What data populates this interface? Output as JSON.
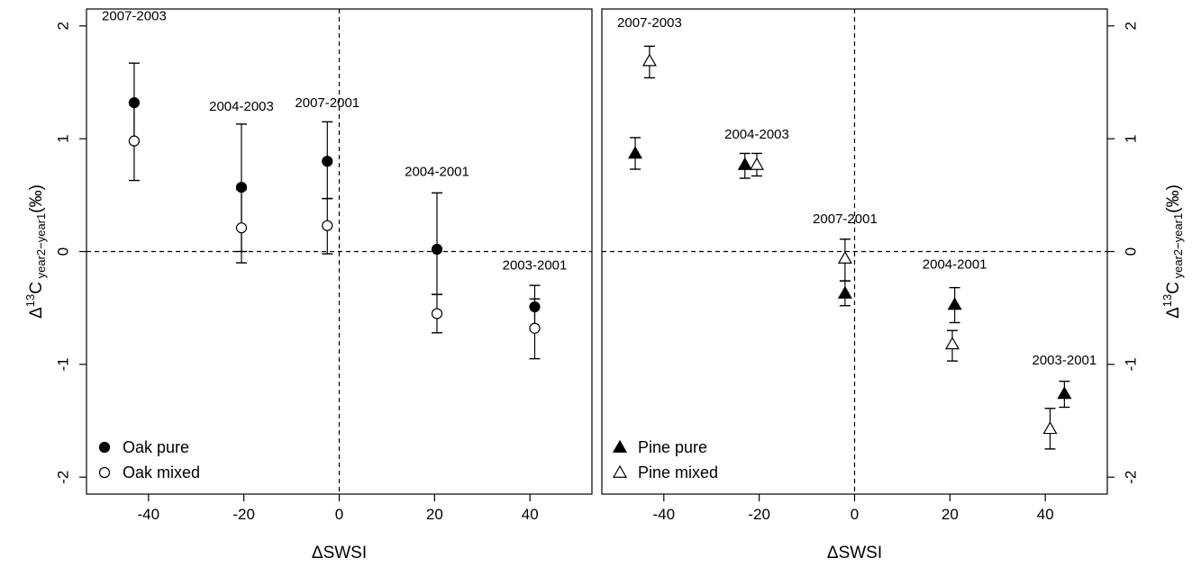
{
  "chart_data": [
    {
      "type": "scatter",
      "panel": "left",
      "xlabel": "ΔSWSI",
      "ylabel": "Δ¹³C year2−year1(‰)",
      "ylabel_parts": {
        "delta": "Δ",
        "sup": "13",
        "main": "C",
        "sub": "year2−year1",
        "unit": "(‰)"
      },
      "xlim": [
        -53,
        53
      ],
      "ylim": [
        -2.15,
        2.15
      ],
      "xticks": [
        -40,
        -20,
        0,
        20,
        40
      ],
      "yticks": [
        -2,
        -1,
        0,
        1,
        2
      ],
      "xtick_labels": [
        "-40",
        "-20",
        "0",
        "20",
        "40"
      ],
      "ytick_labels": [
        "-2",
        "-1",
        "0",
        "1",
        "2"
      ],
      "yaxis_side": "left",
      "reference_lines": {
        "x": 0,
        "y": 0
      },
      "legend_position": "bottom-left",
      "series": [
        {
          "name": "Oak pure",
          "marker": "filled-circle",
          "points": [
            {
              "x": -43,
              "y": 1.32,
              "low": 0.97,
              "high": 1.67
            },
            {
              "x": -20.5,
              "y": 0.57,
              "low": 0.0,
              "high": 1.13
            },
            {
              "x": -2.5,
              "y": 0.8,
              "low": 0.47,
              "high": 1.15
            },
            {
              "x": 20.5,
              "y": 0.02,
              "low": -0.38,
              "high": 0.52
            },
            {
              "x": 41,
              "y": -0.49,
              "low": -0.68,
              "high": -0.3
            }
          ]
        },
        {
          "name": "Oak mixed",
          "marker": "open-circle",
          "points": [
            {
              "x": -43,
              "y": 0.98,
              "low": 0.63,
              "high": 1.32
            },
            {
              "x": -20.5,
              "y": 0.21,
              "low": -0.1,
              "high": 0.55
            },
            {
              "x": -2.5,
              "y": 0.23,
              "low": -0.02,
              "high": 0.47
            },
            {
              "x": 20.5,
              "y": -0.55,
              "low": -0.72,
              "high": -0.38
            },
            {
              "x": 41,
              "y": -0.68,
              "low": -0.95,
              "high": -0.42
            }
          ]
        }
      ],
      "annotations": [
        {
          "text": "2007-2003",
          "x": -43,
          "y": 2.05
        },
        {
          "text": "2004-2003",
          "x": -20.5,
          "y": 1.25
        },
        {
          "text": "2007-2001",
          "x": -2.5,
          "y": 1.28
        },
        {
          "text": "2004-2001",
          "x": 20.5,
          "y": 0.67
        },
        {
          "text": "2003-2001",
          "x": 41,
          "y": -0.16
        }
      ]
    },
    {
      "type": "scatter",
      "panel": "right",
      "xlabel": "ΔSWSI",
      "ylabel": "Δ¹³C year2−year1(‰)",
      "ylabel_parts": {
        "delta": "Δ",
        "sup": "13",
        "main": "C",
        "sub": "year2−year1",
        "unit": "(‰)"
      },
      "xlim": [
        -53,
        53
      ],
      "ylim": [
        -2.15,
        2.15
      ],
      "xticks": [
        -40,
        -20,
        0,
        20,
        40
      ],
      "yticks": [
        -2,
        -1,
        0,
        1,
        2
      ],
      "xtick_labels": [
        "-40",
        "-20",
        "0",
        "20",
        "40"
      ],
      "ytick_labels": [
        "-2",
        "-1",
        "0",
        "1",
        "2"
      ],
      "yaxis_side": "right",
      "reference_lines": {
        "x": 0,
        "y": 0
      },
      "legend_position": "bottom-left",
      "series": [
        {
          "name": "Pine pure",
          "marker": "filled-triangle",
          "points": [
            {
              "x": -46,
              "y": 0.87,
              "low": 0.73,
              "high": 1.01
            },
            {
              "x": -23,
              "y": 0.77,
              "low": 0.65,
              "high": 0.87
            },
            {
              "x": -2,
              "y": -0.37,
              "low": -0.48,
              "high": -0.26
            },
            {
              "x": 21,
              "y": -0.47,
              "low": -0.63,
              "high": -0.32
            },
            {
              "x": 44,
              "y": -1.26,
              "low": -1.38,
              "high": -1.15
            }
          ]
        },
        {
          "name": "Pine mixed",
          "marker": "open-triangle",
          "points": [
            {
              "x": -43,
              "y": 1.69,
              "low": 1.54,
              "high": 1.82
            },
            {
              "x": -20.5,
              "y": 0.77,
              "low": 0.67,
              "high": 0.87
            },
            {
              "x": -2,
              "y": -0.06,
              "low": -0.26,
              "high": 0.11
            },
            {
              "x": 20.5,
              "y": -0.82,
              "low": -0.97,
              "high": -0.7
            },
            {
              "x": 41,
              "y": -1.57,
              "low": -1.75,
              "high": -1.39
            }
          ]
        }
      ],
      "annotations": [
        {
          "text": "2007-2003",
          "x": -43,
          "y": 1.99
        },
        {
          "text": "2004-2003",
          "x": -20.5,
          "y": 1.0
        },
        {
          "text": "2007-2001",
          "x": -2,
          "y": 0.25
        },
        {
          "text": "2004-2001",
          "x": 21,
          "y": -0.15
        },
        {
          "text": "2003-2001",
          "x": 44,
          "y": -1.0
        }
      ]
    }
  ]
}
